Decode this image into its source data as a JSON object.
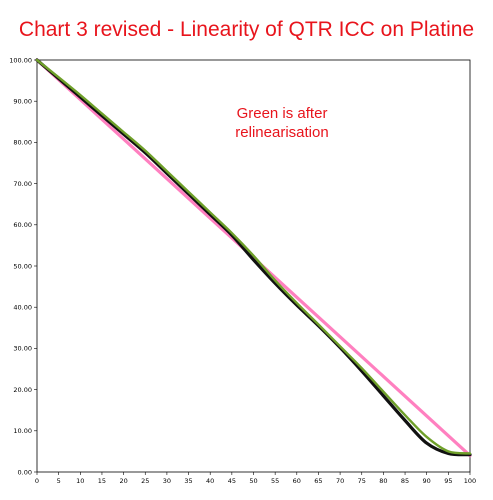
{
  "chart_data": {
    "type": "line",
    "title": "Chart 3 revised - Linearity of QTR ICC on Platine",
    "xlabel": "",
    "ylabel": "",
    "xlim": [
      0,
      100
    ],
    "ylim": [
      0,
      100
    ],
    "x_ticks": [
      "0",
      "5",
      "10",
      "15",
      "20",
      "25",
      "30",
      "35",
      "40",
      "45",
      "50",
      "55",
      "60",
      "65",
      "70",
      "75",
      "80",
      "85",
      "90",
      "95",
      "100"
    ],
    "y_ticks": [
      "0.00",
      "10.00",
      "20.00",
      "30.00",
      "40.00",
      "50.00",
      "60.00",
      "70.00",
      "80.00",
      "90.00",
      "100.00"
    ],
    "grid": false,
    "annotations": [
      "Green is after",
      "relinearisation"
    ],
    "series": [
      {
        "color": "#ff80c0",
        "x": [
          0,
          100
        ],
        "y": [
          100,
          4
        ]
      },
      {
        "color": "#111111",
        "x": [
          0,
          5,
          10,
          15,
          20,
          25,
          30,
          35,
          40,
          45,
          50,
          55,
          60,
          65,
          70,
          75,
          80,
          85,
          90,
          95,
          100
        ],
        "y": [
          100,
          95.5,
          91,
          86.5,
          82,
          77.5,
          72.5,
          67.5,
          62.5,
          57.5,
          51.5,
          45.8,
          40.5,
          35.5,
          30.2,
          24.5,
          18.5,
          12.5,
          7,
          4.5,
          4.2
        ]
      },
      {
        "color": "#6fa02a",
        "x": [
          0,
          5,
          10,
          15,
          20,
          25,
          30,
          35,
          40,
          45,
          50,
          55,
          60,
          65,
          70,
          75,
          80,
          85,
          90,
          95,
          100
        ],
        "y": [
          100,
          95.8,
          91.5,
          87,
          82.5,
          78,
          73,
          68,
          63,
          58,
          52.5,
          46.5,
          41,
          35.8,
          30.5,
          25.2,
          19.5,
          13.8,
          8.5,
          5,
          4.5
        ]
      }
    ]
  }
}
